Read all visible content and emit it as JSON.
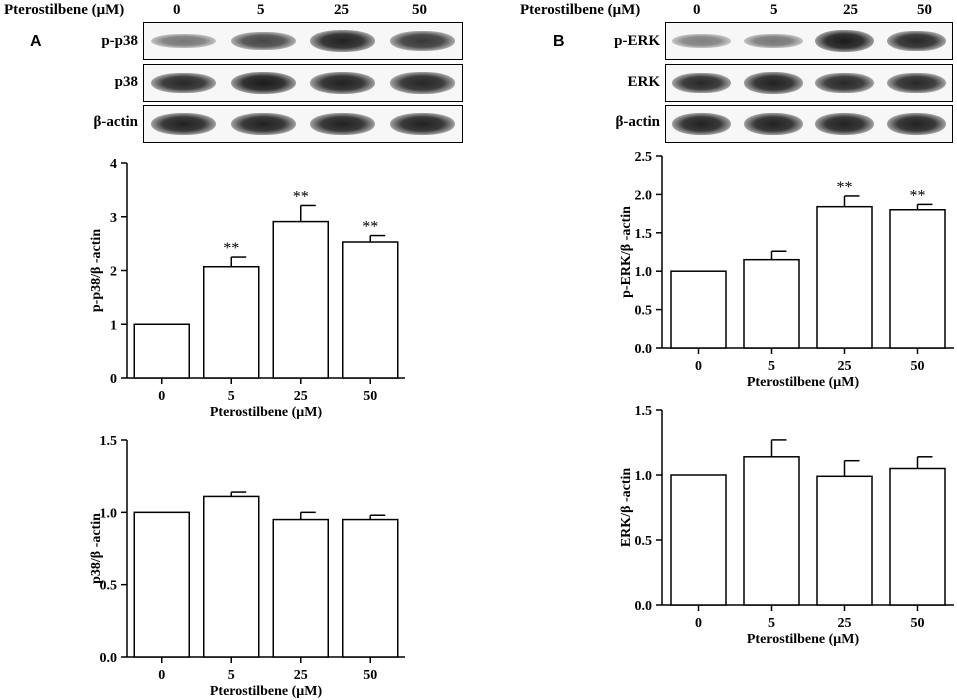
{
  "treatment_label": "Pterostilbene (μM)",
  "doses": [
    "0",
    "5",
    "25",
    "50"
  ],
  "panels": {
    "A": {
      "letter": "A",
      "blots": [
        {
          "label": "p-p38",
          "intensity": [
            0.35,
            0.7,
            0.95,
            0.8
          ]
        },
        {
          "label": "p38",
          "intensity": [
            0.9,
            1.0,
            0.95,
            0.92
          ]
        },
        {
          "label": "β-actin",
          "intensity": [
            0.95,
            0.95,
            0.95,
            0.95
          ]
        }
      ]
    },
    "B": {
      "letter": "B",
      "blots": [
        {
          "label": "p-ERK",
          "intensity": [
            0.3,
            0.35,
            1.0,
            0.9
          ]
        },
        {
          "label": "ERK",
          "intensity": [
            0.9,
            0.95,
            0.9,
            0.9
          ]
        },
        {
          "label": "β-actin",
          "intensity": [
            0.95,
            0.95,
            0.95,
            0.95
          ]
        }
      ]
    }
  },
  "chart_data": [
    {
      "id": "p-p38",
      "type": "bar",
      "categories": [
        "0",
        "5",
        "25",
        "50"
      ],
      "values": [
        1.0,
        2.07,
        2.91,
        2.53
      ],
      "errors": [
        0,
        0.18,
        0.3,
        0.12
      ],
      "significance": [
        "",
        "**",
        "**",
        "**"
      ],
      "xlabel": "Pterostilbene (μM)",
      "ylabel": "p-p38/β -actin",
      "ylim": [
        0,
        4
      ],
      "yticks": [
        "0",
        "1",
        "2",
        "3",
        "4"
      ]
    },
    {
      "id": "p38",
      "type": "bar",
      "categories": [
        "0",
        "5",
        "25",
        "50"
      ],
      "values": [
        1.0,
        1.11,
        0.95,
        0.95
      ],
      "errors": [
        0,
        0.03,
        0.05,
        0.03
      ],
      "significance": [
        "",
        "",
        "",
        ""
      ],
      "xlabel": "Pterostilbene (μM)",
      "ylabel": "p38/β -actin",
      "ylim": [
        0,
        1.5
      ],
      "yticks": [
        "0.0",
        "0.5",
        "1.0",
        "1.5"
      ]
    },
    {
      "id": "p-ERK",
      "type": "bar",
      "categories": [
        "0",
        "5",
        "25",
        "50"
      ],
      "values": [
        1.0,
        1.15,
        1.84,
        1.8
      ],
      "errors": [
        0,
        0.11,
        0.14,
        0.07
      ],
      "significance": [
        "",
        "",
        "**",
        "**"
      ],
      "xlabel": "Pterostilbene (μM)",
      "ylabel": "p-ERK/β -actin",
      "ylim": [
        0,
        2.5
      ],
      "yticks": [
        "0.0",
        "0.5",
        "1.0",
        "1.5",
        "2.0",
        "2.5"
      ]
    },
    {
      "id": "ERK",
      "type": "bar",
      "categories": [
        "0",
        "5",
        "25",
        "50"
      ],
      "values": [
        1.0,
        1.14,
        0.99,
        1.05
      ],
      "errors": [
        0,
        0.13,
        0.12,
        0.09
      ],
      "significance": [
        "",
        "",
        "",
        ""
      ],
      "xlabel": "Pterostilbene (μM)",
      "ylabel": "ERK/β -actin",
      "ylim": [
        0,
        1.5
      ],
      "yticks": [
        "0.0",
        "0.5",
        "1.0",
        "1.5"
      ]
    }
  ]
}
